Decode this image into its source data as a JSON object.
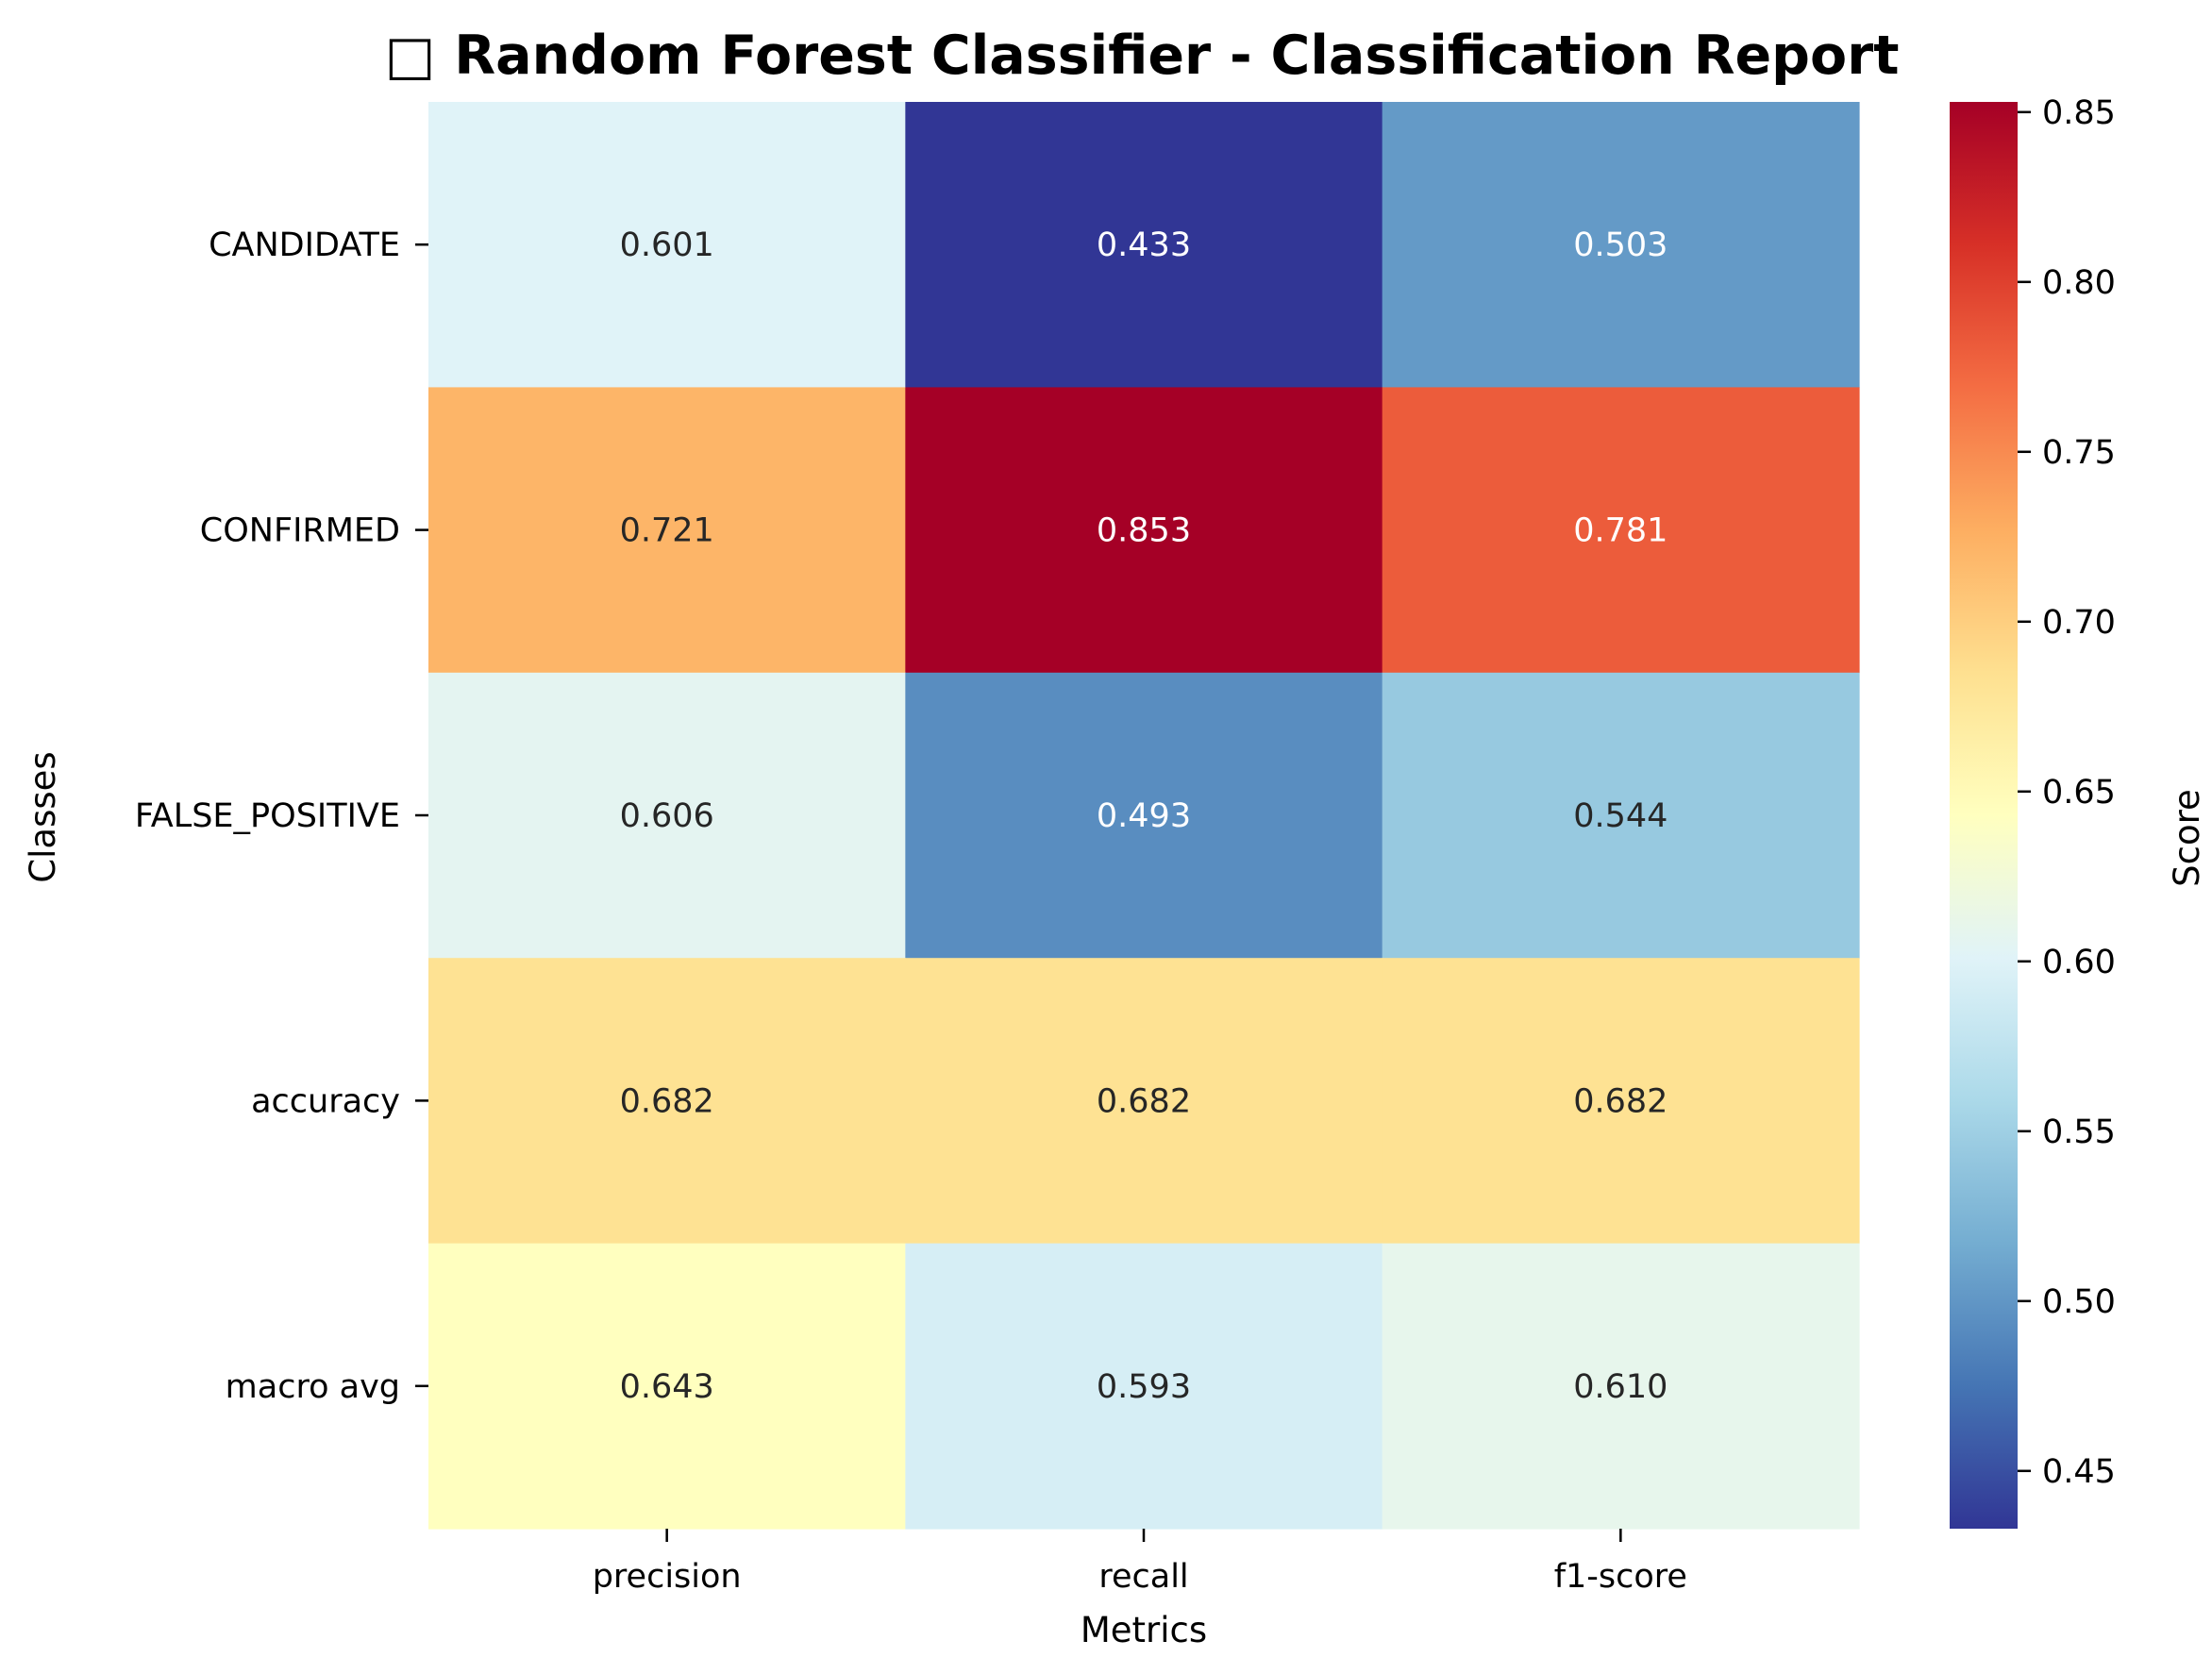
{
  "chart_data": {
    "type": "heatmap",
    "title": "□ Random Forest Classifier - Classification Report",
    "xlabel": "Metrics",
    "ylabel": "Classes",
    "columns": [
      "precision",
      "recall",
      "f1-score"
    ],
    "rows": [
      "CANDIDATE",
      "CONFIRMED",
      "FALSE_POSITIVE",
      "accuracy",
      "macro avg"
    ],
    "values": [
      [
        0.601,
        0.433,
        0.503
      ],
      [
        0.721,
        0.853,
        0.781
      ],
      [
        0.606,
        0.493,
        0.544
      ],
      [
        0.682,
        0.682,
        0.682
      ],
      [
        0.643,
        0.593,
        0.61
      ]
    ],
    "cell_labels": [
      [
        "0.601",
        "0.433",
        "0.503"
      ],
      [
        "0.721",
        "0.853",
        "0.781"
      ],
      [
        "0.606",
        "0.493",
        "0.544"
      ],
      [
        "0.682",
        "0.682",
        "0.682"
      ],
      [
        "0.643",
        "0.593",
        "0.610"
      ]
    ],
    "colormap": "RdYlBu_r",
    "colorbar": {
      "label": "Score",
      "range": [
        0.433,
        0.853
      ],
      "ticks": [
        0.45,
        0.5,
        0.55,
        0.6,
        0.65,
        0.7,
        0.75,
        0.8,
        0.85
      ],
      "tick_labels": [
        "0.45",
        "0.50",
        "0.55",
        "0.60",
        "0.65",
        "0.70",
        "0.75",
        "0.80",
        "0.85"
      ]
    },
    "grid": false
  }
}
